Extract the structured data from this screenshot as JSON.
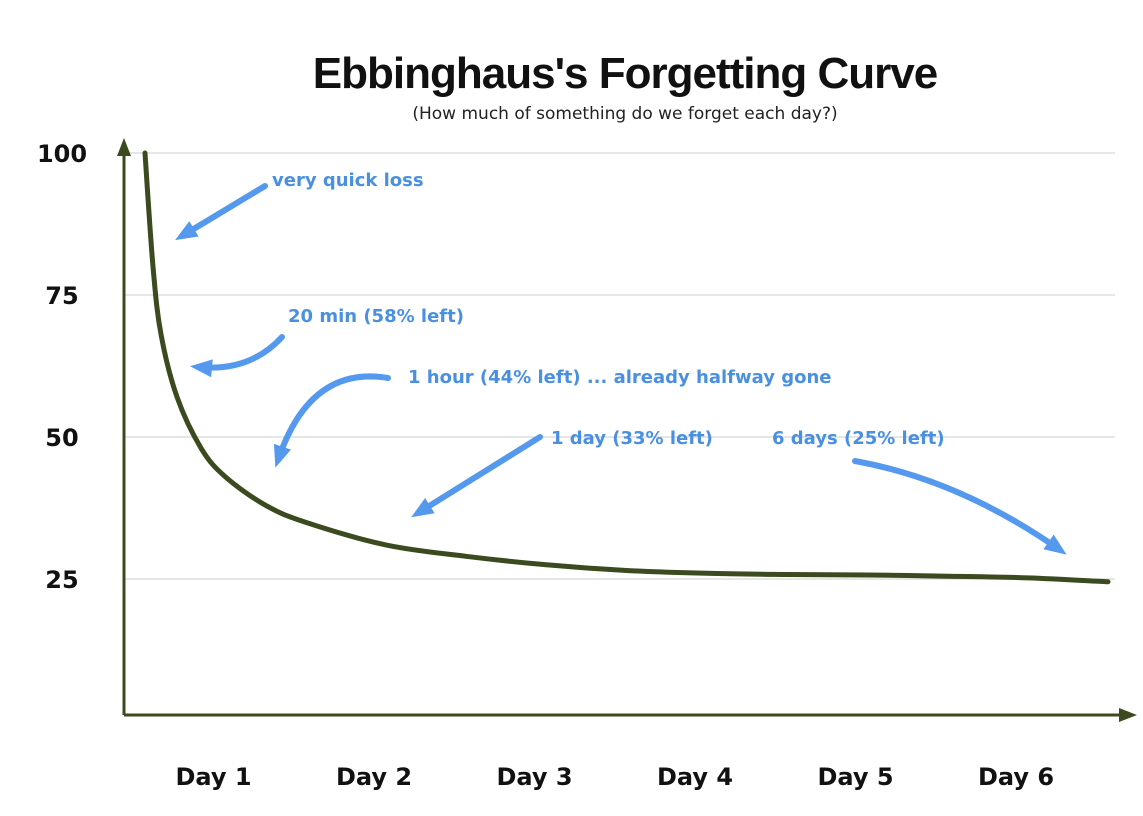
{
  "chart_data": {
    "type": "line",
    "title": "Ebbinghaus's Forgetting Curve",
    "subtitle": "(How much of something do we forget each day?)",
    "xlabel": "",
    "ylabel": "",
    "x_categories": [
      "Day 1",
      "Day 2",
      "Day 3",
      "Day 4",
      "Day 5",
      "Day 6"
    ],
    "y_ticks": [
      100,
      75,
      50,
      25
    ],
    "ylim": [
      0,
      100
    ],
    "grid": true,
    "series": [
      {
        "points": [
          {
            "x": 0.0,
            "y": 100
          },
          {
            "x": 0.05,
            "y": 80
          },
          {
            "x": 0.1,
            "y": 68
          },
          {
            "x": 0.2,
            "y": 57
          },
          {
            "x": 0.35,
            "y": 48
          },
          {
            "x": 0.5,
            "y": 43
          },
          {
            "x": 0.75,
            "y": 38
          },
          {
            "x": 1.0,
            "y": 35
          },
          {
            "x": 1.5,
            "y": 31
          },
          {
            "x": 2.0,
            "y": 29
          },
          {
            "x": 2.5,
            "y": 27.5
          },
          {
            "x": 3.0,
            "y": 26.5
          },
          {
            "x": 3.5,
            "y": 26
          },
          {
            "x": 4.0,
            "y": 25.8
          },
          {
            "x": 4.5,
            "y": 25.7
          },
          {
            "x": 5.0,
            "y": 25.5
          },
          {
            "x": 5.5,
            "y": 25.2
          },
          {
            "x": 6.0,
            "y": 24.5
          }
        ]
      }
    ],
    "annotations": [
      {
        "text": "very quick loss",
        "target_x": 0.12,
        "target_y": 84
      },
      {
        "text": "20 min (58% left)",
        "target_x": 0.3,
        "target_y": 61
      },
      {
        "text": "1 hour (44% left) ... already halfway gone",
        "target_x": 0.9,
        "target_y": 44
      },
      {
        "text": "1 day (33% left)",
        "target_x": 1.72,
        "target_y": 35
      },
      {
        "text": "6 days (25% left)",
        "target_x": 5.8,
        "target_y": 28
      }
    ]
  },
  "colors": {
    "curve": "#3b4a1f",
    "annotation": "#4a90e2",
    "grid": "#cccccc"
  }
}
